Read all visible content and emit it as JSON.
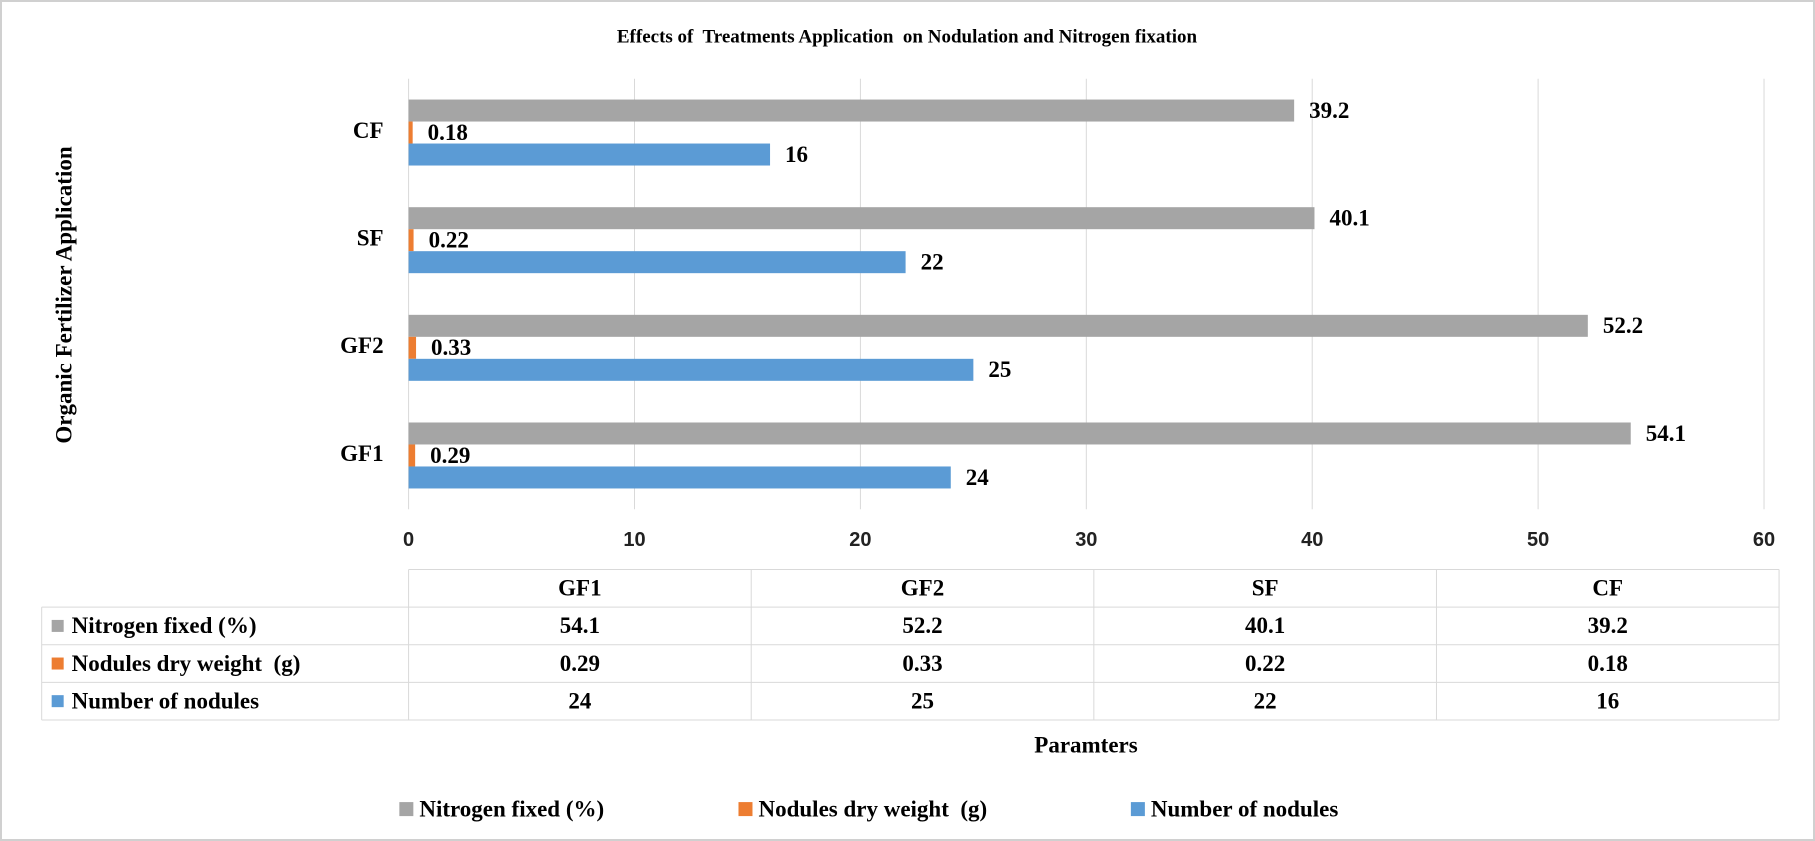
{
  "chart_data": {
    "type": "bar",
    "orientation": "horizontal",
    "title": "Effects of  Treatments Application  on Nodulation and Nitrogen fixation",
    "x_label": "Paramters",
    "y_label": "Organic Fertilizer Application",
    "categories": [
      "GF1",
      "GF2",
      "SF",
      "CF"
    ],
    "series": [
      {
        "name": "Nitrogen fixed (%)",
        "color": "#a5a5a5",
        "values": [
          54.1,
          52.2,
          40.1,
          39.2
        ]
      },
      {
        "name": "Nodules dry weight  (g)",
        "color": "#ed7d31",
        "values": [
          0.29,
          0.33,
          0.22,
          0.18
        ]
      },
      {
        "name": "Number of nodules",
        "color": "#5b9bd5",
        "values": [
          24,
          25,
          22,
          16
        ]
      }
    ],
    "xlim": [
      0,
      60
    ],
    "xticks": [
      0,
      10,
      20,
      30,
      40,
      50,
      60
    ],
    "grid": true,
    "legend": "bottom"
  }
}
